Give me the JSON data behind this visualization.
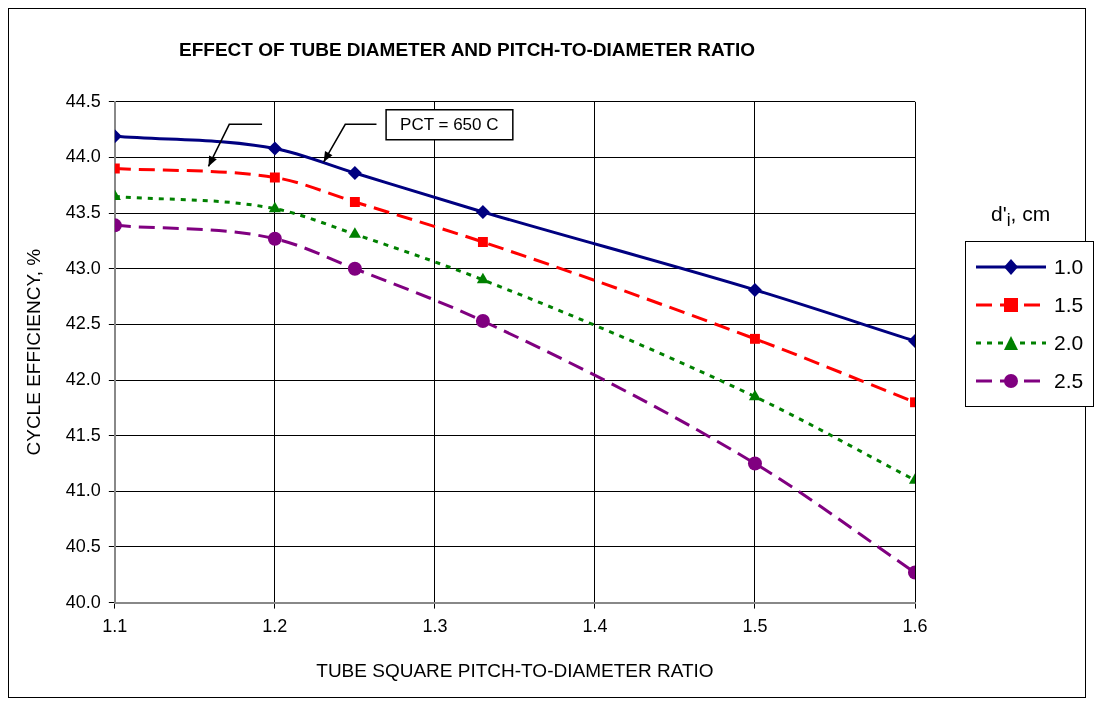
{
  "chart_data": {
    "type": "line",
    "title": "EFFECT OF TUBE DIAMETER AND PITCH-TO-DIAMETER RATIO",
    "xlabel": "TUBE SQUARE PITCH-TO-DIAMETER RATIO",
    "ylabel": "CYCLE EFFICIENCY, %",
    "legend_title": "d'$_{i}$, cm",
    "annotations": [
      "PCT = 650 C"
    ],
    "x": [
      1.1,
      1.2,
      1.25,
      1.33,
      1.5,
      1.6
    ],
    "series": [
      {
        "name": "1.0",
        "color": "#000080",
        "marker": "diamond",
        "line_style": "solid",
        "values": [
          44.19,
          44.08,
          43.86,
          43.51,
          42.81,
          42.35
        ]
      },
      {
        "name": "1.5",
        "color": "#ff0000",
        "marker": "square",
        "line_style": "dashed",
        "values": [
          43.9,
          43.82,
          43.6,
          43.24,
          42.37,
          41.8
        ]
      },
      {
        "name": "2.0",
        "color": "#008000",
        "marker": "triangle",
        "line_style": "dotted",
        "values": [
          43.65,
          43.54,
          43.31,
          42.9,
          41.85,
          41.1
        ]
      },
      {
        "name": "2.5",
        "color": "#800080",
        "marker": "circle",
        "line_style": "dashed",
        "values": [
          43.39,
          43.27,
          43.0,
          42.53,
          41.25,
          40.27
        ]
      }
    ],
    "xlim": [
      1.1,
      1.6
    ],
    "xticks": [
      1.1,
      1.2,
      1.3,
      1.4,
      1.5,
      1.6
    ],
    "ylim": [
      40,
      44.5
    ],
    "yticks": [
      {
        "value": 40,
        "label": "40.0"
      },
      40.5,
      {
        "value": 41,
        "label": "41.0"
      },
      41.5,
      {
        "value": 42,
        "label": "42.0"
      },
      42.5,
      {
        "value": 43,
        "label": "43.0"
      },
      43.5,
      {
        "value": 44,
        "label": "44.0"
      },
      44.5
    ],
    "grid": true,
    "legend": "right"
  }
}
